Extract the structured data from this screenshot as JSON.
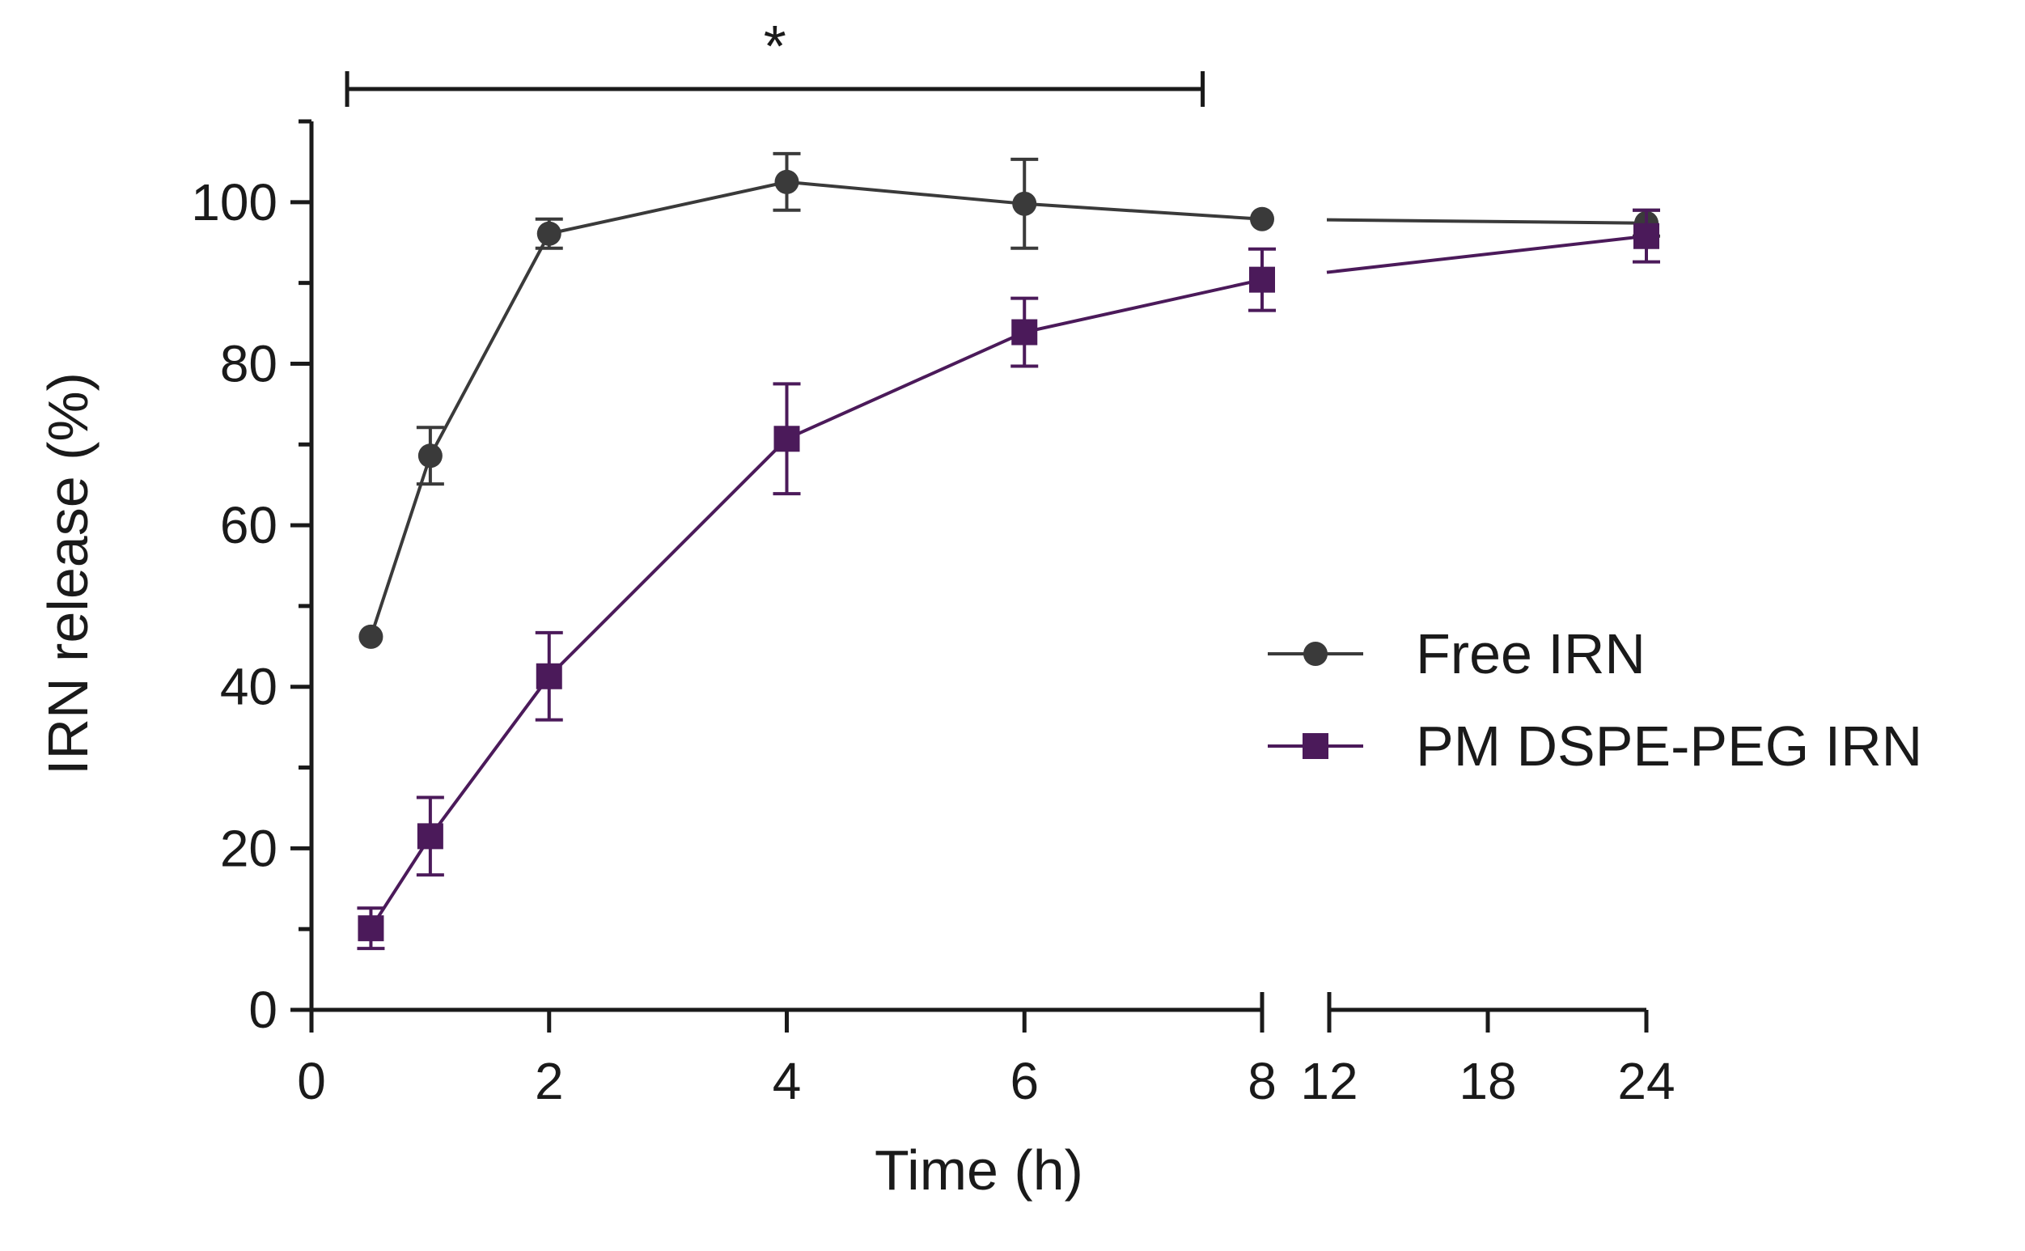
{
  "chart_data": {
    "type": "line",
    "title": "",
    "xlabel": "Time (h)",
    "ylabel": "IRN release (%)",
    "ylim": [
      0,
      110
    ],
    "x_axis_segments": [
      {
        "range": [
          0,
          8
        ],
        "ticks": [
          0,
          2,
          4,
          6,
          8
        ],
        "tick_labels": [
          "0",
          "2",
          "4",
          "6",
          "8"
        ]
      },
      {
        "range": [
          12,
          24
        ],
        "ticks": [
          12,
          18,
          24
        ],
        "tick_labels": [
          "12",
          "18",
          "24"
        ]
      }
    ],
    "y_ticks": [
      0,
      20,
      40,
      60,
      80,
      100
    ],
    "y_tick_labels": [
      "0",
      "20",
      "40",
      "60",
      "80",
      "100"
    ],
    "series": [
      {
        "name": "Free IRN",
        "marker": "circle",
        "color": "#3a3a3a",
        "x": [
          0.5,
          1,
          2,
          4,
          6,
          8,
          24
        ],
        "y": [
          46.2,
          68.6,
          96.1,
          102.5,
          99.8,
          97.9,
          97.4
        ],
        "err": [
          0.8,
          3.5,
          1.8,
          3.5,
          5.5,
          0.5,
          1.6
        ]
      },
      {
        "name": "PM DSPE-PEG IRN",
        "marker": "square",
        "color": "#4b1a5a",
        "x": [
          0.5,
          1,
          2,
          4,
          6,
          8,
          24
        ],
        "y": [
          10.1,
          21.5,
          41.3,
          70.7,
          83.9,
          90.4,
          95.8
        ],
        "err": [
          2.5,
          4.8,
          5.4,
          6.8,
          4.2,
          3.8,
          3.2
        ]
      }
    ],
    "significance": {
      "label": "*",
      "x_range": [
        0.3,
        7.5
      ]
    },
    "legend": {
      "position": "right",
      "entries": [
        "Free IRN",
        "PM DSPE-PEG IRN"
      ]
    }
  }
}
